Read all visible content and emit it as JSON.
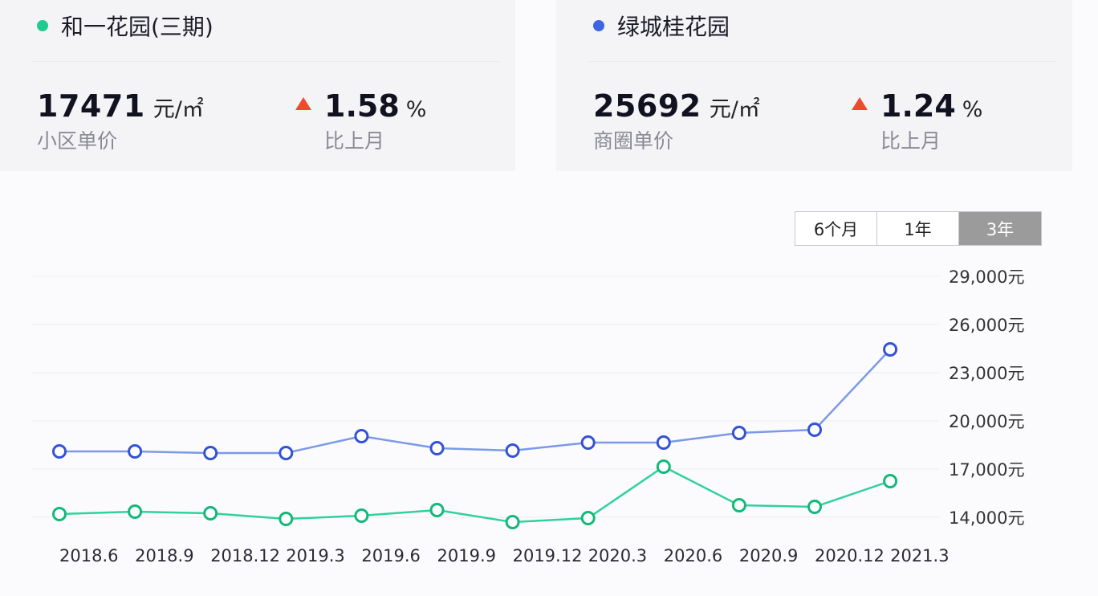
{
  "cards": [
    {
      "name": "和一花园(三期)",
      "dot_color": "#1fcc8f",
      "price": "17471",
      "unit": "元/㎡",
      "price_label": "小区单价",
      "change": "1.58",
      "change_unit": "%",
      "change_label": "比上月",
      "change_direction": "up"
    },
    {
      "name": "绿城桂花园",
      "dot_color": "#3f66e0",
      "price": "25692",
      "unit": "元/㎡",
      "price_label": "商圈单价",
      "change": "1.24",
      "change_unit": "%",
      "change_label": "比上月",
      "change_direction": "up"
    }
  ],
  "range_tabs": [
    {
      "label": "6个月",
      "active": false
    },
    {
      "label": "1年",
      "active": false
    },
    {
      "label": "3年",
      "active": true
    }
  ],
  "colors": {
    "up_arrow": "#ee4a2d",
    "series_green": "#2fd29a",
    "series_blue": "#7b9ae6",
    "marker_green": "#12b978",
    "marker_blue": "#3352d6"
  },
  "chart_data": {
    "type": "line",
    "title": "",
    "xlabel": "",
    "ylabel": "",
    "categories": [
      "2018.6",
      "2018.9",
      "2018.12",
      "2019.3",
      "2019.6",
      "2019.9",
      "2019.12",
      "2020.3",
      "2020.6",
      "2020.9",
      "2020.12",
      "2021.3"
    ],
    "y_ticks": [
      "29,000元",
      "26,000元",
      "23,000元",
      "20,000元",
      "17,000元",
      "14,000元"
    ],
    "y_tick_values": [
      29000,
      26000,
      23000,
      20000,
      17000,
      14000
    ],
    "ylim": [
      14000,
      29000
    ],
    "grid": true,
    "y_axis_position": "right",
    "series": [
      {
        "name": "绿城桂花园",
        "color": "#3f66e0",
        "values": [
          18100,
          18100,
          18000,
          18000,
          19050,
          18300,
          18150,
          18650,
          18650,
          19250,
          19450,
          24450
        ]
      },
      {
        "name": "和一花园(三期)",
        "color": "#1fcc8f",
        "values": [
          14200,
          14350,
          14250,
          13900,
          14100,
          14450,
          13700,
          13950,
          17150,
          14750,
          14650,
          16250
        ]
      }
    ]
  }
}
